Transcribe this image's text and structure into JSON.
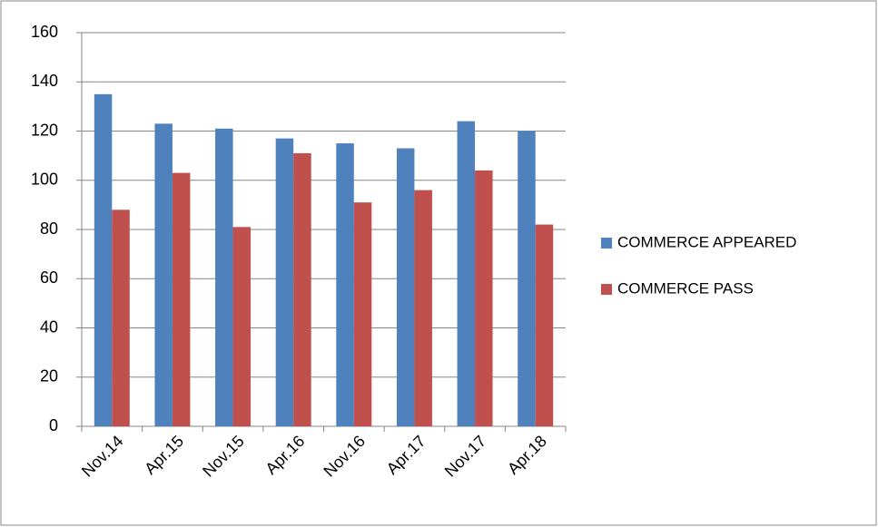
{
  "chart_data": {
    "type": "bar",
    "categories": [
      "Nov.14",
      "Apr.15",
      "Nov.15",
      "Apr.16",
      "Nov.16",
      "Apr.17",
      "Nov.17",
      "Apr.18"
    ],
    "series": [
      {
        "name": "COMMERCE APPEARED",
        "color": "#4f81bd",
        "values": [
          135,
          123,
          121,
          117,
          115,
          113,
          124,
          120
        ]
      },
      {
        "name": "COMMERCE PASS",
        "color": "#c0504d",
        "values": [
          88,
          103,
          81,
          111,
          91,
          96,
          104,
          82
        ]
      }
    ],
    "ylim": [
      0,
      160
    ],
    "yticks": [
      0,
      20,
      40,
      60,
      80,
      100,
      120,
      140,
      160
    ],
    "grid": true,
    "legend": "right"
  }
}
